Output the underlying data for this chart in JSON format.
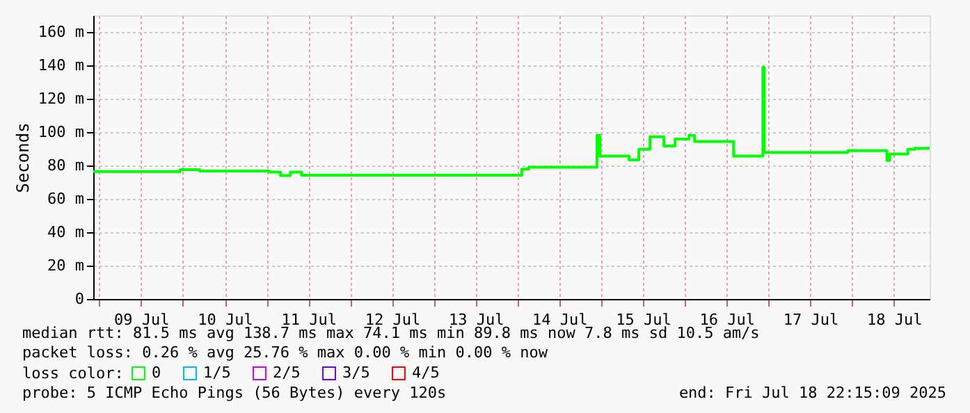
{
  "chart_data": {
    "type": "step",
    "ylabel": "Seconds",
    "legend_title": "loss color:",
    "legend": "bottom left",
    "grid": true,
    "line_style": "solid",
    "marker": "none",
    "x": [
      "2025-07-08T22:15",
      "2025-07-09T23:12",
      "2025-07-10T04:48",
      "2025-07-11T00:48",
      "2025-07-11T04:00",
      "2025-07-11T06:48",
      "2025-07-11T10:00",
      "2025-07-14T01:12",
      "2025-07-14T03:12",
      "2025-07-14T22:48",
      "2025-07-14T23:36",
      "2025-07-15T08:00",
      "2025-07-15T10:48",
      "2025-07-15T14:00",
      "2025-07-15T18:00",
      "2025-07-15T21:12",
      "2025-07-16T01:12",
      "2025-07-16T02:48",
      "2025-07-16T14:00",
      "2025-07-16T22:24",
      "2025-07-16T22:48",
      "2025-07-17T22:48",
      "2025-07-18T10:00",
      "2025-07-18T10:48",
      "2025-07-18T16:00",
      "2025-07-18T18:00",
      "2025-07-18T22:15"
    ],
    "series": [
      {
        "name": "0",
        "color": "#00ff00",
        "values": [
          76.4,
          77.5,
          76.7,
          76.0,
          74.0,
          76.0,
          74.2,
          77.8,
          79.0,
          98.0,
          85.6,
          83.3,
          89.7,
          97.2,
          91.7,
          95.8,
          98.0,
          94.4,
          85.6,
          138.7,
          87.8,
          88.9,
          83.0,
          86.9,
          89.7,
          90.3,
          89.8
        ]
      },
      {
        "name": "1/5",
        "color": "#00b8ff",
        "values": [
          null,
          null,
          null,
          null,
          null,
          null,
          null,
          null,
          null,
          null,
          null,
          null,
          null,
          null,
          null,
          null,
          null,
          null,
          null,
          null,
          null,
          null,
          null,
          null,
          null,
          null,
          null
        ]
      },
      {
        "name": "2/5",
        "color": "#cc00ff",
        "values": [
          null,
          null,
          null,
          null,
          null,
          null,
          null,
          null,
          null,
          null,
          null,
          null,
          null,
          null,
          null,
          null,
          null,
          null,
          null,
          null,
          null,
          null,
          null,
          null,
          null,
          null,
          null
        ]
      },
      {
        "name": "3/5",
        "color": "#6600ff",
        "values": [
          null,
          null,
          null,
          null,
          null,
          null,
          null,
          null,
          null,
          null,
          null,
          null,
          null,
          null,
          null,
          null,
          null,
          null,
          null,
          null,
          null,
          null,
          null,
          null,
          null,
          null,
          null
        ]
      },
      {
        "name": "4/5",
        "color": "#ff0000",
        "values": [
          null,
          null,
          null,
          null,
          null,
          null,
          null,
          null,
          null,
          null,
          null,
          null,
          null,
          null,
          null,
          null,
          null,
          null,
          null,
          null,
          null,
          null,
          null,
          null,
          null,
          null,
          null
        ]
      }
    ],
    "xlim": [
      "2025-07-08T22:15",
      "2025-07-18T22:15"
    ],
    "xticks": [
      {
        "value": "2025-07-09T00:00",
        "label": null
      },
      {
        "value": "2025-07-09T12:00",
        "label": "09 Jul"
      },
      {
        "value": "2025-07-10T00:00",
        "label": null
      },
      {
        "value": "2025-07-10T12:00",
        "label": "10 Jul"
      },
      {
        "value": "2025-07-11T00:00",
        "label": null
      },
      {
        "value": "2025-07-11T12:00",
        "label": "11 Jul"
      },
      {
        "value": "2025-07-12T00:00",
        "label": null
      },
      {
        "value": "2025-07-12T12:00",
        "label": "12 Jul"
      },
      {
        "value": "2025-07-13T00:00",
        "label": null
      },
      {
        "value": "2025-07-13T12:00",
        "label": "13 Jul"
      },
      {
        "value": "2025-07-14T00:00",
        "label": null
      },
      {
        "value": "2025-07-14T12:00",
        "label": "14 Jul"
      },
      {
        "value": "2025-07-15T00:00",
        "label": null
      },
      {
        "value": "2025-07-15T12:00",
        "label": "15 Jul"
      },
      {
        "value": "2025-07-16T00:00",
        "label": null
      },
      {
        "value": "2025-07-16T12:00",
        "label": "16 Jul"
      },
      {
        "value": "2025-07-17T00:00",
        "label": null
      },
      {
        "value": "2025-07-17T12:00",
        "label": "17 Jul"
      },
      {
        "value": "2025-07-18T00:00",
        "label": null
      },
      {
        "value": "2025-07-18T12:00",
        "label": "18 Jul"
      }
    ],
    "ylim": [
      0,
      170
    ],
    "yticks": [
      0,
      {
        "value": 20,
        "label": "20 m"
      },
      {
        "value": 40,
        "label": "40 m"
      },
      {
        "value": 60,
        "label": "60 m"
      },
      {
        "value": 80,
        "label": "80 m"
      },
      {
        "value": 100,
        "label": "100 m"
      },
      {
        "value": 120,
        "label": "120 m"
      },
      {
        "value": 140,
        "label": "140 m"
      },
      {
        "value": 160,
        "label": "160 m"
      }
    ],
    "annotations": [
      "median rtt: 81.5 ms avg 138.7 ms max 74.1 ms min 89.8 ms now 7.8 ms sd 10.5 am/s",
      "packet loss: 0.26 % avg 25.76 % max 0.00 % min 0.00 % now",
      "probe: 5 ICMP Echo Pings (56 Bytes) every 120s",
      "end: Fri Jul 18 22:15:09 2025"
    ]
  }
}
